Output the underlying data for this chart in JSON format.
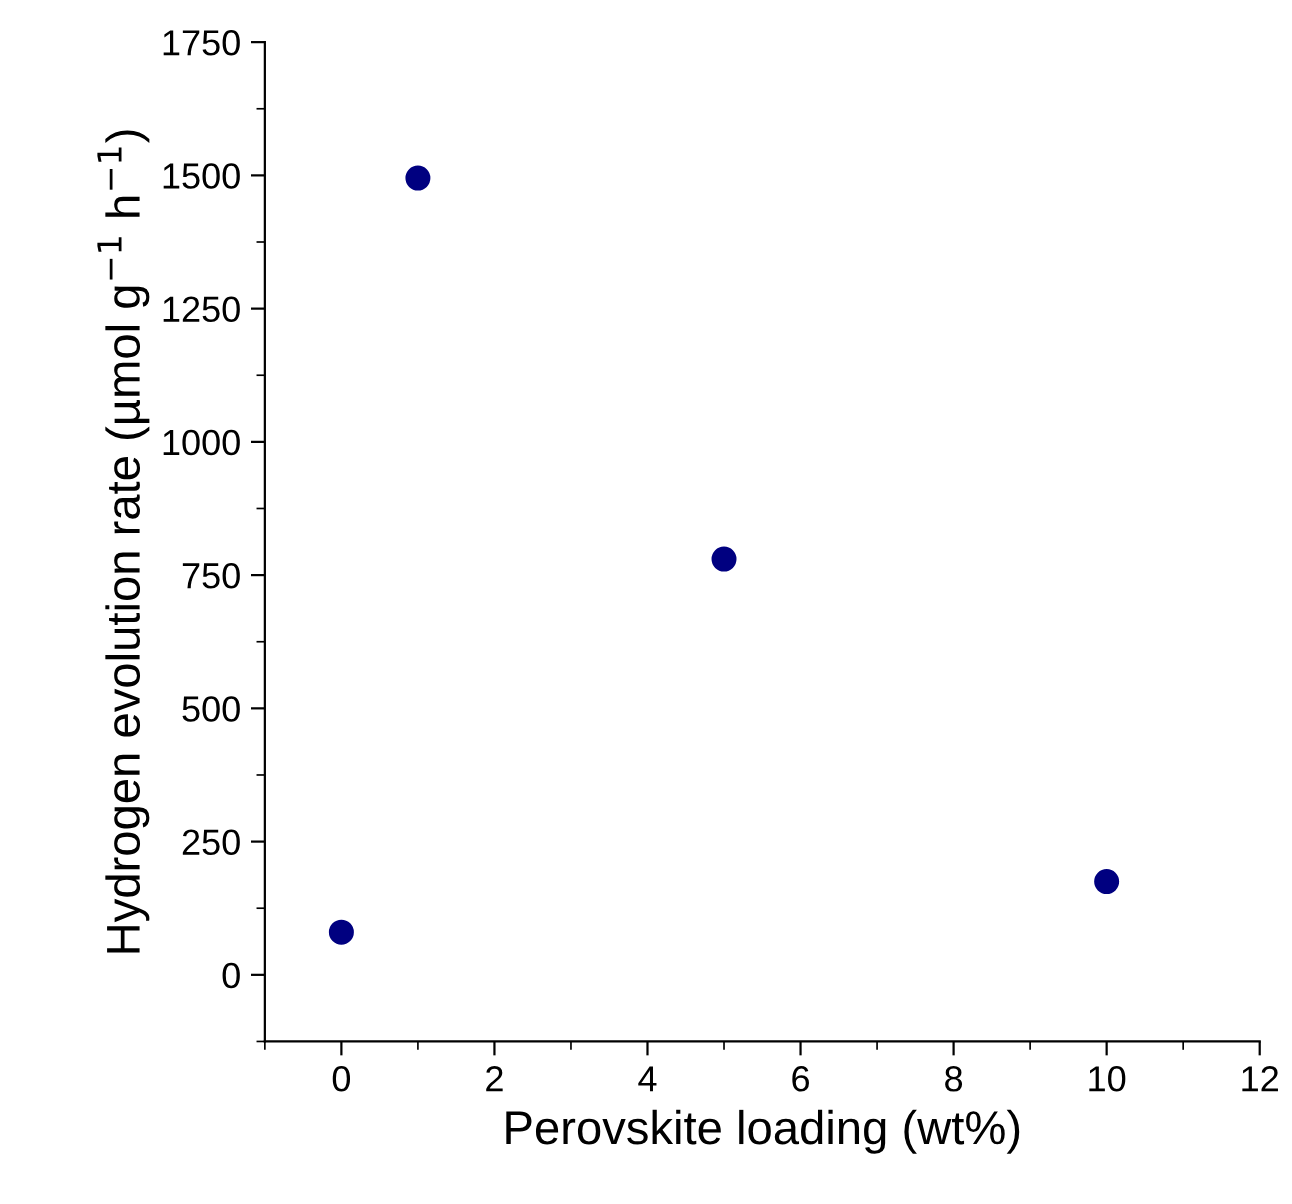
{
  "chart_data": {
    "type": "scatter",
    "xlabel": "Perovskite loading (wt%)",
    "ylabel": "Hydrogen evolution rate (µmol g$^{−1}$ h$^{−1}$)",
    "x": [
      0,
      1,
      5,
      10
    ],
    "series": [
      {
        "color": "#000080",
        "values": [
          80,
          1495,
          780,
          175
        ]
      }
    ],
    "xlim": [
      -1,
      12
    ],
    "xticks": [
      0,
      2,
      4,
      6,
      8,
      10,
      12
    ],
    "ylim": [
      -125,
      1750
    ],
    "yticks": [
      0,
      250,
      500,
      750,
      1000,
      1250,
      1500,
      1750
    ],
    "marker": "circle",
    "grid": false,
    "legend": false
  }
}
